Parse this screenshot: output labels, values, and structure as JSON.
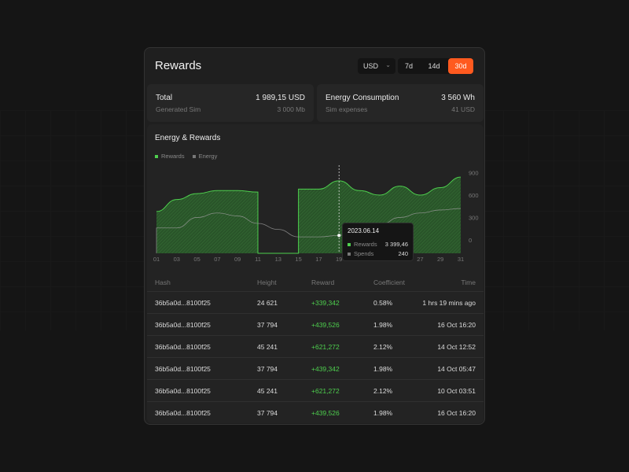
{
  "header": {
    "title": "Rewards",
    "currency": "USD",
    "ranges": [
      "7d",
      "14d",
      "30d"
    ],
    "active_range": "30d"
  },
  "stats": [
    {
      "label": "Total",
      "value": "1 989,15 USD",
      "sub_label": "Generated Sim",
      "sub_value": "3 000 Mb"
    },
    {
      "label": "Energy Consumption",
      "value": "3 560 Wh",
      "sub_label": "Sim expenses",
      "sub_value": "41 USD"
    }
  ],
  "colors": {
    "accent": "#ff5a1f",
    "green": "#4ecf4e"
  },
  "chart_data": {
    "type": "area",
    "title": "Energy & Rewards",
    "legend": [
      "Rewards",
      "Energy"
    ],
    "x": [
      "01",
      "03",
      "05",
      "07",
      "09",
      "11",
      "13",
      "15",
      "17",
      "19",
      "21",
      "23",
      "25",
      "27",
      "29",
      "31"
    ],
    "y_ticks": [
      900,
      600,
      300,
      0
    ],
    "ylim": [
      -180,
      1000
    ],
    "series": [
      {
        "name": "Rewards",
        "values": [
          380,
          540,
          620,
          660,
          660,
          640,
          -180,
          -180,
          680,
          790,
          660,
          600,
          720,
          600,
          700,
          840
        ]
      },
      {
        "name": "Energy",
        "values": [
          -180,
          160,
          300,
          360,
          320,
          220,
          140,
          40,
          40,
          60,
          140,
          200,
          300,
          360,
          400,
          420
        ]
      }
    ],
    "highlight_index": 9,
    "tooltip": {
      "date": "2023.06.14",
      "rows": [
        {
          "label": "Rewards",
          "value": "3 399,46"
        },
        {
          "label": "Spends",
          "value": "240"
        }
      ]
    }
  },
  "table": {
    "headers": [
      "Hash",
      "Height",
      "Reward",
      "Coefficient",
      "Time"
    ],
    "rows": [
      [
        "36b5a0d...8100f25",
        "24 621",
        "+339,342",
        "0.58%",
        "1 hrs 19 mins ago"
      ],
      [
        "36b5a0d...8100f25",
        "37 794",
        "+439,526",
        "1.98%",
        "16 Oct 16:20"
      ],
      [
        "36b5a0d...8100f25",
        "45 241",
        "+621,272",
        "2.12%",
        "14 Oct 12:52"
      ],
      [
        "36b5a0d...8100f25",
        "37 794",
        "+439,342",
        "1.98%",
        "14 Oct 05:47"
      ],
      [
        "36b5a0d...8100f25",
        "45 241",
        "+621,272",
        "2.12%",
        "10 Oct 03:51"
      ],
      [
        "36b5a0d...8100f25",
        "37 794",
        "+439,526",
        "1.98%",
        "16 Oct 16:20"
      ]
    ]
  }
}
